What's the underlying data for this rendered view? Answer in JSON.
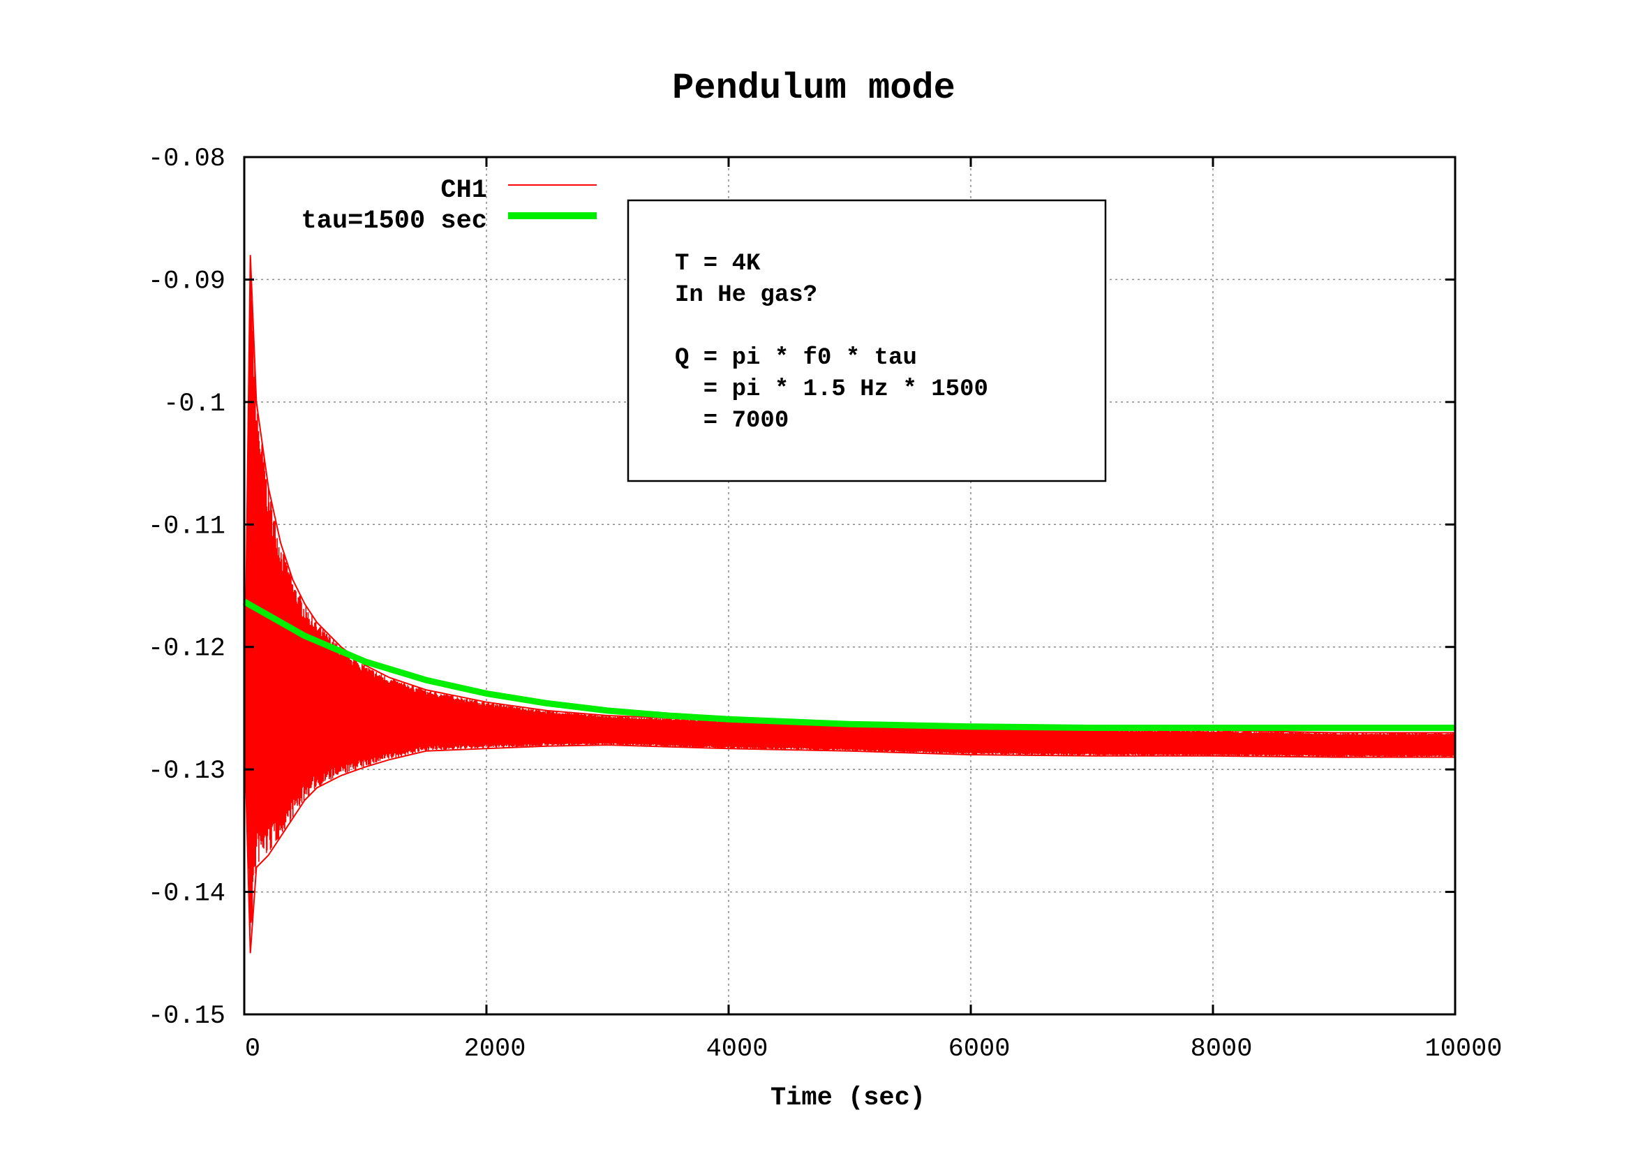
{
  "chart_data": {
    "type": "line",
    "title": "Pendulum mode",
    "xlabel": "Time (sec)",
    "ylabel": "",
    "xlim": [
      0,
      10000
    ],
    "ylim": [
      -0.15,
      -0.08
    ],
    "xticks": [
      0,
      2000,
      4000,
      6000,
      8000,
      10000
    ],
    "yticks": [
      -0.15,
      -0.14,
      -0.13,
      -0.12,
      -0.11,
      -0.1,
      -0.09,
      -0.08
    ],
    "xtick_labels": [
      "0",
      "2000",
      "4000",
      "6000",
      "8000",
      "10000"
    ],
    "ytick_labels": [
      "-0.15",
      "-0.14",
      "-0.13",
      "-0.12",
      "-0.11",
      "-0.1",
      "-0.09",
      "-0.08"
    ],
    "grid": true,
    "legend_position": "top-left",
    "series": [
      {
        "name": "CH1",
        "color": "#ff0000",
        "style": "oscillating-envelope",
        "envelope": {
          "t": [
            0,
            50,
            100,
            200,
            300,
            400,
            500,
            600,
            800,
            1000,
            1200,
            1500,
            2000,
            2500,
            3000,
            4000,
            5000,
            6000,
            7000,
            8000,
            9000,
            10000
          ],
          "upper": [
            -0.1265,
            -0.088,
            -0.1,
            -0.107,
            -0.1115,
            -0.1145,
            -0.1165,
            -0.118,
            -0.12,
            -0.1215,
            -0.1225,
            -0.1235,
            -0.1245,
            -0.1252,
            -0.1256,
            -0.126,
            -0.1262,
            -0.1264,
            -0.1267,
            -0.1268,
            -0.127,
            -0.127
          ],
          "lower": [
            -0.1265,
            -0.145,
            -0.138,
            -0.137,
            -0.1355,
            -0.134,
            -0.1325,
            -0.1315,
            -0.1305,
            -0.1298,
            -0.1292,
            -0.1285,
            -0.1283,
            -0.1281,
            -0.128,
            -0.1283,
            -0.1285,
            -0.1288,
            -0.1289,
            -0.1289,
            -0.129,
            -0.129
          ]
        }
      },
      {
        "name": "tau=1500 sec",
        "color": "#00ee00",
        "style": "line",
        "x": [
          0,
          500,
          1000,
          1500,
          2000,
          2500,
          3000,
          3500,
          4000,
          4500,
          5000,
          5500,
          6000,
          7000,
          8000,
          9000,
          10000
        ],
        "y": [
          -0.1163,
          -0.1191,
          -0.1212,
          -0.1227,
          -0.1238,
          -0.1246,
          -0.1252,
          -0.1256,
          -0.1259,
          -0.1261,
          -0.1263,
          -0.1264,
          -0.1265,
          -0.1266,
          -0.1266,
          -0.1266,
          -0.1266
        ]
      }
    ],
    "annotation": {
      "lines": [
        "T = 4K",
        "In He gas?",
        "",
        "Q = pi * f0 * tau",
        "  = pi * 1.5 Hz * 1500",
        "  = 7000"
      ]
    }
  }
}
